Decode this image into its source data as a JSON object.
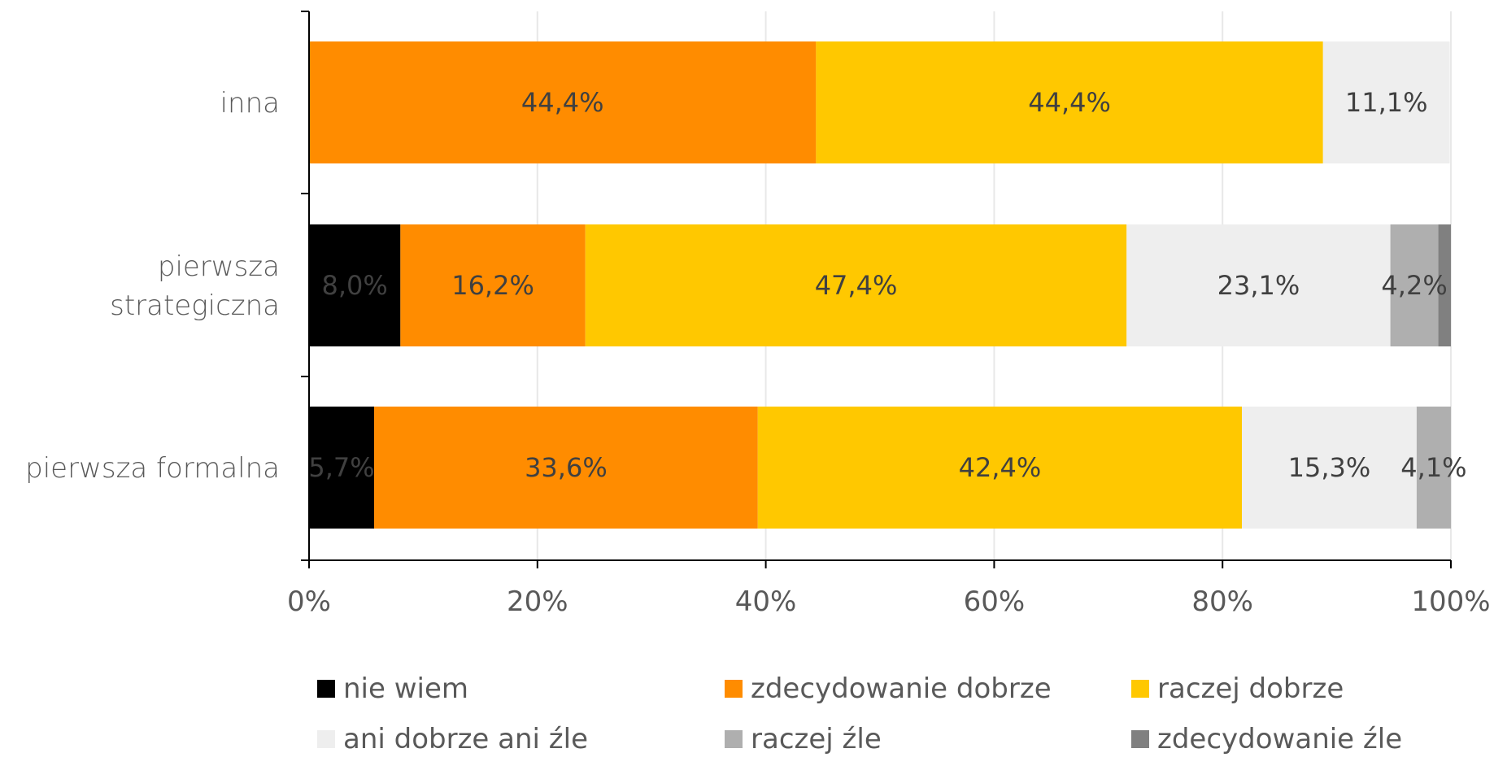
{
  "chart_data": {
    "type": "bar",
    "orientation": "horizontal",
    "stacked": "percent",
    "categories": [
      "inna",
      "pierwsza strategiczna",
      "pierwsza formalna"
    ],
    "category_lines": [
      [
        "inna"
      ],
      [
        "pierwsza",
        "strategiczna"
      ],
      [
        "pierwsza formalna"
      ]
    ],
    "series": [
      {
        "name": "nie wiem",
        "color": "#000000",
        "values": [
          0,
          8.0,
          5.7
        ],
        "labels": [
          "",
          "8,0%",
          "5,7%"
        ]
      },
      {
        "name": "zdecydowanie dobrze",
        "color": "#FF8C00",
        "values": [
          44.4,
          16.2,
          33.6
        ],
        "labels": [
          "44,4%",
          "16,2%",
          "33,6%"
        ]
      },
      {
        "name": "raczej dobrze",
        "color": "#FFC800",
        "values": [
          44.4,
          47.4,
          42.4
        ],
        "labels": [
          "44,4%",
          "47,4%",
          "42,4%"
        ]
      },
      {
        "name": "ani dobrze ani źle",
        "color": "#EEEEEE",
        "values": [
          11.1,
          23.1,
          15.3
        ],
        "labels": [
          "11,1%",
          "23,1%",
          "15,3%"
        ]
      },
      {
        "name": "raczej źle",
        "color": "#AFAFAF",
        "values": [
          0,
          4.2,
          4.1
        ],
        "labels": [
          "",
          "4,2%",
          "4,1%"
        ]
      },
      {
        "name": "zdecydowanie źle",
        "color": "#808080",
        "values": [
          0,
          1.1,
          0
        ],
        "labels": [
          "",
          "",
          ""
        ]
      }
    ],
    "xlim": [
      0,
      100
    ],
    "xticks": [
      "0%",
      "20%",
      "40%",
      "60%",
      "80%",
      "100%"
    ],
    "grid": "vertical",
    "legend": "bottom"
  }
}
